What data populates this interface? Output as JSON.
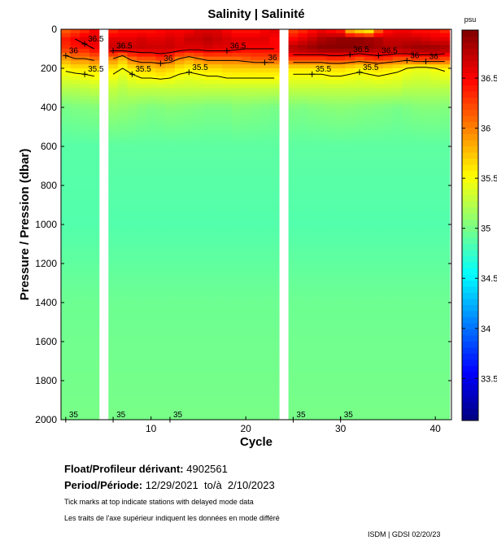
{
  "chart_data": {
    "type": "heatmap",
    "title": "Salinity | Salinité",
    "xlabel": "Cycle",
    "ylabel": "Pressure / Pression (dbar)",
    "xlim": [
      0.5,
      41.7
    ],
    "ylim": [
      2000,
      0
    ],
    "xticks": [
      10,
      20,
      30,
      40
    ],
    "yticks": [
      0,
      200,
      400,
      600,
      800,
      1000,
      1200,
      1400,
      1600,
      1800,
      2000
    ],
    "colorbar": {
      "unit": "psu",
      "range": [
        33.08,
        36.98
      ],
      "ticks": [
        33.5,
        34,
        34.5,
        35,
        35.5,
        36,
        36.5
      ],
      "tick_labels": [
        "33.5",
        "34",
        "34.5",
        "35",
        "35.5",
        "36",
        "36.5"
      ],
      "colormap": "jet"
    },
    "contour_levels": [
      35,
      35.5,
      36,
      36.5
    ],
    "contour_label_text": {
      "35": "35",
      "35.5": "35.5",
      "36": "36",
      "36.5": "36.5"
    },
    "missing_cycles": [
      5,
      24
    ],
    "pressure_levels": [
      0,
      50,
      100,
      150,
      200,
      300,
      400,
      600,
      1000,
      1400,
      2000
    ],
    "profiles": {
      "1": [
        36.1,
        36.4,
        36.3,
        35.9,
        35.55,
        35.25,
        35.0,
        34.88,
        34.86,
        34.96,
        35.0
      ],
      "2": [
        36.2,
        36.5,
        36.4,
        36.0,
        35.6,
        35.25,
        35.02,
        34.88,
        34.86,
        34.96,
        35.0
      ],
      "3": [
        36.3,
        36.6,
        36.4,
        36.0,
        35.6,
        35.28,
        35.03,
        34.88,
        34.86,
        34.96,
        35.0
      ],
      "4": [
        36.5,
        36.6,
        36.5,
        36.1,
        35.65,
        35.3,
        35.04,
        34.88,
        34.86,
        34.96,
        35.0
      ],
      "6": [
        36.3,
        36.6,
        36.7,
        36.0,
        35.6,
        35.3,
        35.12,
        34.9,
        34.86,
        34.96,
        35.0
      ],
      "7": [
        36.4,
        36.6,
        36.75,
        35.8,
        35.5,
        35.25,
        35.1,
        34.9,
        34.86,
        34.96,
        35.0
      ],
      "8": [
        36.4,
        36.6,
        36.7,
        36.1,
        35.6,
        35.3,
        35.08,
        34.9,
        34.86,
        34.96,
        35.0
      ],
      "9": [
        36.4,
        36.65,
        36.7,
        36.2,
        35.7,
        35.3,
        35.05,
        34.9,
        34.86,
        34.96,
        35.0
      ],
      "10": [
        36.4,
        36.6,
        36.7,
        36.2,
        35.7,
        35.3,
        35.03,
        34.9,
        34.86,
        34.96,
        35.0
      ],
      "11": [
        36.45,
        36.6,
        36.7,
        36.3,
        35.75,
        35.3,
        35.04,
        34.9,
        34.86,
        34.96,
        35.0
      ],
      "12": [
        36.5,
        36.65,
        36.7,
        36.2,
        35.7,
        35.3,
        35.06,
        34.9,
        34.86,
        34.96,
        35.0
      ],
      "13": [
        36.5,
        36.6,
        36.65,
        36.0,
        35.6,
        35.3,
        35.05,
        34.9,
        34.86,
        34.96,
        35.0
      ],
      "14": [
        36.5,
        36.7,
        36.6,
        35.9,
        35.55,
        35.3,
        35.04,
        34.9,
        34.86,
        34.96,
        35.0
      ],
      "15": [
        36.6,
        36.7,
        36.6,
        36.0,
        35.6,
        35.3,
        35.03,
        34.9,
        34.86,
        34.96,
        35.0
      ],
      "16": [
        36.6,
        36.75,
        36.65,
        36.1,
        35.65,
        35.3,
        35.02,
        34.9,
        34.86,
        34.96,
        35.0
      ],
      "17": [
        36.6,
        36.7,
        36.6,
        36.1,
        35.65,
        35.3,
        35.02,
        34.9,
        34.86,
        34.96,
        35.0
      ],
      "18": [
        36.5,
        36.65,
        36.6,
        36.1,
        35.7,
        35.3,
        35.02,
        34.9,
        34.86,
        34.96,
        35.0
      ],
      "19": [
        36.4,
        36.6,
        36.55,
        36.1,
        35.7,
        35.3,
        35.05,
        34.9,
        34.86,
        34.96,
        35.0
      ],
      "20": [
        36.4,
        36.6,
        36.5,
        36.15,
        35.7,
        35.3,
        35.04,
        34.9,
        34.86,
        34.96,
        35.0
      ],
      "21": [
        36.4,
        36.6,
        36.5,
        36.2,
        35.7,
        35.3,
        35.03,
        34.9,
        34.86,
        34.96,
        35.0
      ],
      "22": [
        36.5,
        36.6,
        36.5,
        36.2,
        35.7,
        35.3,
        35.02,
        34.9,
        34.86,
        34.96,
        35.0
      ],
      "23": [
        36.6,
        36.5,
        36.5,
        36.2,
        35.7,
        35.3,
        35.0,
        34.9,
        34.86,
        34.96,
        35.0
      ],
      "25": [
        36.2,
        36.5,
        36.8,
        36.3,
        35.6,
        35.3,
        35.03,
        34.9,
        34.86,
        34.96,
        35.0
      ],
      "26": [
        36.3,
        36.6,
        36.85,
        36.3,
        35.6,
        35.3,
        35.02,
        34.9,
        34.86,
        34.96,
        35.0
      ],
      "27": [
        36.4,
        36.7,
        36.9,
        36.3,
        35.6,
        35.3,
        35.04,
        34.9,
        34.86,
        34.96,
        35.0
      ],
      "28": [
        36.5,
        36.8,
        36.95,
        36.3,
        35.6,
        35.3,
        35.05,
        34.9,
        34.86,
        34.96,
        35.0
      ],
      "29": [
        36.4,
        36.85,
        36.95,
        36.35,
        35.65,
        35.3,
        35.06,
        34.9,
        34.86,
        34.96,
        35.0
      ],
      "30": [
        36.3,
        36.9,
        36.95,
        36.35,
        35.65,
        35.3,
        35.07,
        34.9,
        34.86,
        34.96,
        35.0
      ],
      "31": [
        35.6,
        36.9,
        36.95,
        36.3,
        35.6,
        35.3,
        35.06,
        34.9,
        34.86,
        34.96,
        35.0
      ],
      "32": [
        35.4,
        36.9,
        36.9,
        36.2,
        35.55,
        35.3,
        35.05,
        34.9,
        34.86,
        34.96,
        35.0
      ],
      "33": [
        35.3,
        36.85,
        36.9,
        36.3,
        35.6,
        35.3,
        35.04,
        34.9,
        34.86,
        34.96,
        35.0
      ],
      "34": [
        36.0,
        36.8,
        36.85,
        36.35,
        35.65,
        35.3,
        35.03,
        34.9,
        34.86,
        34.96,
        35.0
      ],
      "35": [
        36.4,
        36.7,
        36.8,
        36.3,
        35.6,
        35.3,
        35.02,
        34.9,
        34.86,
        34.96,
        35.0
      ],
      "36": [
        36.5,
        36.7,
        36.8,
        36.2,
        35.55,
        35.3,
        35.0,
        34.9,
        34.86,
        34.96,
        35.0
      ],
      "37": [
        36.5,
        36.7,
        36.85,
        36.2,
        35.5,
        35.25,
        35.02,
        34.9,
        34.86,
        34.96,
        35.0
      ],
      "38": [
        36.4,
        36.7,
        36.9,
        36.3,
        35.45,
        35.25,
        35.04,
        34.9,
        34.86,
        34.96,
        35.0
      ],
      "39": [
        36.4,
        36.65,
        36.9,
        36.3,
        35.45,
        35.25,
        35.05,
        34.9,
        34.86,
        34.96,
        35.0
      ],
      "40": [
        36.4,
        36.6,
        36.9,
        36.3,
        35.5,
        35.25,
        35.05,
        34.9,
        34.86,
        34.96,
        35.0
      ],
      "41": [
        36.3,
        36.6,
        36.85,
        36.25,
        35.55,
        35.25,
        35.04,
        34.9,
        34.86,
        34.96,
        35.0
      ]
    }
  },
  "info": {
    "float_label": "Float/Profileur dérivant:",
    "float_id": "4902561",
    "period_label": "Period/Période:",
    "period_value": "12/29/2021  to/à  2/10/2023",
    "note_en": "Tick marks at top indicate stations with delayed mode data",
    "note_fr": "Les traits de l'axe supérieur indiquent les données en mode différé",
    "credit": "ISDM | GDSI  02/20/23"
  }
}
